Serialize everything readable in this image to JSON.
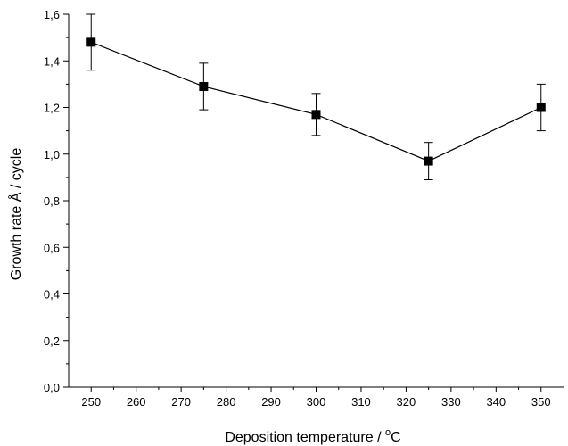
{
  "chart_data": {
    "type": "line",
    "title": "",
    "xlabel_main": "Deposition temperature / ",
    "xlabel_degree": "o",
    "xlabel_unit": "C",
    "ylabel": "Growth rate Å / cycle",
    "xlim": [
      245,
      355
    ],
    "ylim": [
      0,
      1.6
    ],
    "x_ticks": [
      250,
      260,
      270,
      280,
      290,
      300,
      310,
      320,
      330,
      340,
      350
    ],
    "y_ticks": [
      0.0,
      0.2,
      0.4,
      0.6,
      0.8,
      1.0,
      1.2,
      1.4,
      1.6
    ],
    "x_tick_labels": [
      "250",
      "260",
      "270",
      "280",
      "290",
      "300",
      "310",
      "320",
      "330",
      "340",
      "350"
    ],
    "y_tick_labels": [
      "0,0",
      "0,2",
      "0,4",
      "0,6",
      "0,8",
      "1,0",
      "1,2",
      "1,4",
      "1,6"
    ],
    "grid": false,
    "series": [
      {
        "x": [
          250,
          275,
          300,
          325,
          350
        ],
        "y": [
          1.48,
          1.29,
          1.17,
          0.97,
          1.2
        ],
        "err_low": [
          1.36,
          1.19,
          1.08,
          0.89,
          1.1
        ],
        "err_high": [
          1.6,
          1.39,
          1.26,
          1.05,
          1.3
        ],
        "color": "#000000",
        "marker": "square"
      }
    ]
  }
}
